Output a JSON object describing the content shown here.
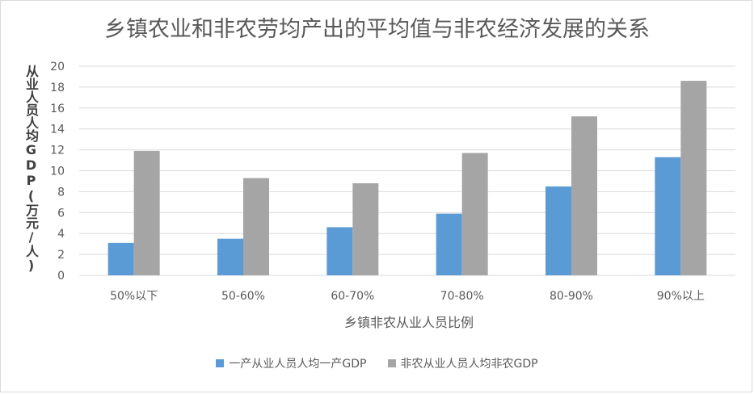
{
  "chart_data": {
    "type": "bar",
    "title": "乡镇农业和非农劳均产出的平均值与非农经济发展的关系",
    "xlabel": "乡镇非农从业人员比例",
    "ylabel": "从业人员人均GDP(万元/人)",
    "ylim": [
      0,
      20
    ],
    "yticks": [
      "0",
      "2",
      "4",
      "6",
      "8",
      "10",
      "12",
      "14",
      "16",
      "18",
      "20"
    ],
    "grid": true,
    "legend_position": "bottom",
    "categories": [
      "50%以下",
      "50-60%",
      "60-70%",
      "70-80%",
      "80-90%",
      "90%以上"
    ],
    "series": [
      {
        "name": "一产从业人员人均一产GDP",
        "color": "#5b9bd5",
        "values": [
          3.1,
          3.5,
          4.6,
          5.9,
          8.5,
          11.3
        ]
      },
      {
        "name": "非农从业人员人均非农GDP",
        "color": "#a5a5a5",
        "values": [
          11.9,
          9.3,
          8.8,
          11.7,
          15.2,
          18.6
        ]
      }
    ]
  }
}
